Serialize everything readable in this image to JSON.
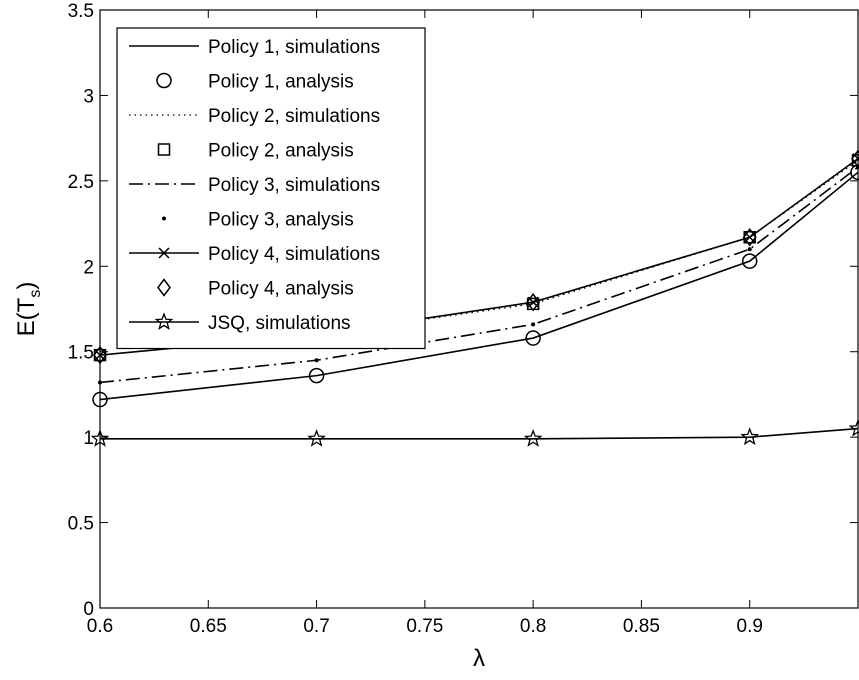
{
  "chart_data": {
    "type": "line",
    "xlabel": "λ",
    "ylabel": "E(T",
    "ylabel_subscript": "s",
    "ylabel_close": ")",
    "xlim": [
      0.6,
      0.95
    ],
    "ylim": [
      0,
      3.5
    ],
    "x_ticks": [
      "0.6",
      "0.65",
      "0.7",
      "0.75",
      "0.8",
      "0.85",
      "0.9"
    ],
    "y_ticks": [
      "0",
      "0.5",
      "1",
      "1.5",
      "2",
      "2.5",
      "3",
      "3.5"
    ],
    "grid": false,
    "legend_position": "top-left",
    "x": [
      0.6,
      0.7,
      0.8,
      0.9,
      0.95
    ],
    "series": [
      {
        "name": "Policy 1, simulations",
        "values": [
          1.22,
          1.36,
          1.58,
          2.03,
          2.55
        ],
        "line": "solid",
        "marker": "none"
      },
      {
        "name": "Policy 1, analysis",
        "values": [
          1.22,
          1.36,
          1.58,
          2.03,
          2.55
        ],
        "line": "none",
        "marker": "circle"
      },
      {
        "name": "Policy 2, simulations",
        "values": [
          1.48,
          1.6,
          1.78,
          2.17,
          2.62
        ],
        "line": "dotted",
        "marker": "none"
      },
      {
        "name": "Policy 2, analysis",
        "values": [
          1.48,
          1.6,
          1.78,
          2.17,
          2.62
        ],
        "line": "none",
        "marker": "square"
      },
      {
        "name": "Policy 3, simulations",
        "values": [
          1.32,
          1.45,
          1.66,
          2.1,
          2.58
        ],
        "line": "dashdot",
        "marker": "none"
      },
      {
        "name": "Policy 3, analysis",
        "values": [
          1.32,
          1.45,
          1.66,
          2.1,
          2.58
        ],
        "line": "none",
        "marker": "dot"
      },
      {
        "name": "Policy 4, simulations",
        "values": [
          1.48,
          1.6,
          1.79,
          2.17,
          2.63
        ],
        "line": "solid",
        "marker": "x"
      },
      {
        "name": "Policy 4, analysis",
        "values": [
          1.48,
          1.6,
          1.79,
          2.17,
          2.63
        ],
        "line": "none",
        "marker": "diamond"
      },
      {
        "name": "JSQ, simulations",
        "values": [
          0.99,
          0.99,
          0.99,
          1.0,
          1.05
        ],
        "line": "solid",
        "marker": "star"
      }
    ]
  }
}
